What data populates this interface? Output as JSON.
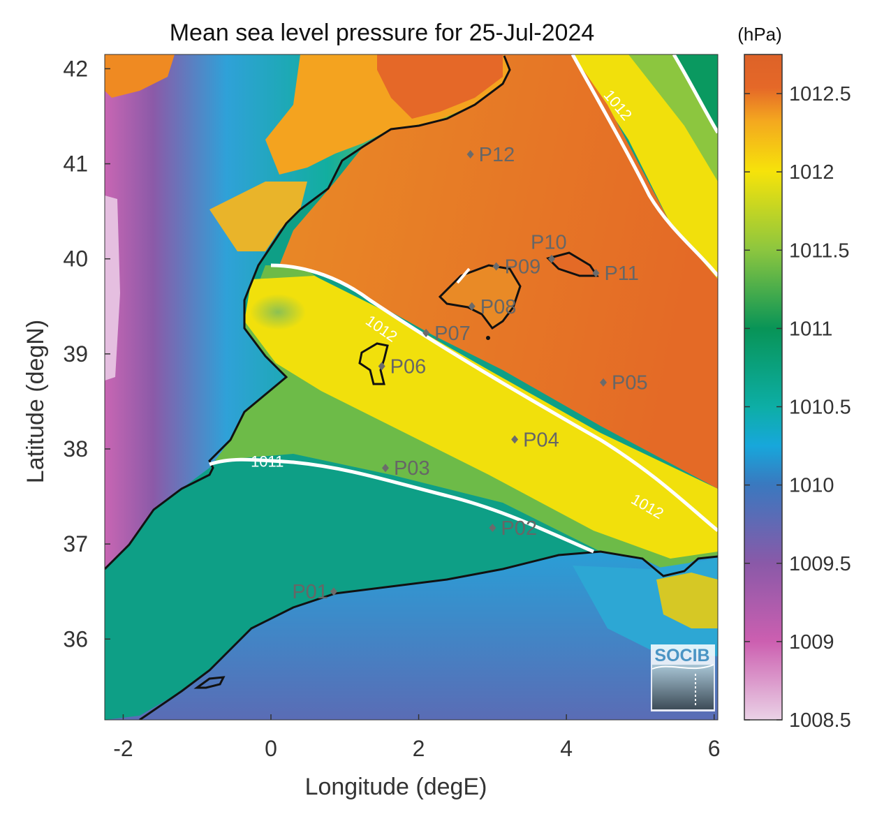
{
  "title": "Mean sea level pressure for 25-Jul-2024",
  "colorbar": {
    "unit_label": "(hPa)",
    "ticks": [
      "1008.5",
      "1009",
      "1009.5",
      "1010",
      "1010.5",
      "1011",
      "1011.5",
      "1012",
      "1012.5"
    ],
    "range": [
      1008.5,
      1012.75
    ],
    "colors": [
      "#ead2e6",
      "#cc5fb0",
      "#8a59a8",
      "#3a78bf",
      "#17a7db",
      "#0daea6",
      "#089457",
      "#8cc63f",
      "#f6e30a",
      "#f4a81f",
      "#e56828",
      "#dd6228"
    ]
  },
  "xaxis": {
    "label": "Longitude (degE)",
    "range": [
      -2.25,
      6.05
    ],
    "ticks": [
      {
        "value": -2,
        "label": "-2"
      },
      {
        "value": 0,
        "label": "0"
      },
      {
        "value": 2,
        "label": "2"
      },
      {
        "value": 4,
        "label": "4"
      },
      {
        "value": 6,
        "label": "6"
      }
    ]
  },
  "yaxis": {
    "label": "Latitude (degN)",
    "range": [
      35.15,
      42.15
    ],
    "ticks": [
      {
        "value": 36,
        "label": "36"
      },
      {
        "value": 37,
        "label": "37"
      },
      {
        "value": 38,
        "label": "38"
      },
      {
        "value": 39,
        "label": "39"
      },
      {
        "value": 40,
        "label": "40"
      },
      {
        "value": 41,
        "label": "41"
      },
      {
        "value": 42,
        "label": "42"
      }
    ]
  },
  "contours": [
    {
      "label": "1012",
      "lon": 4.7,
      "lat": 41.62
    },
    {
      "label": "1012",
      "lon": 1.5,
      "lat": 39.27
    },
    {
      "label": "1012",
      "lon": 5.1,
      "lat": 37.4
    },
    {
      "label": "1011",
      "lon": -0.05,
      "lat": 37.87
    }
  ],
  "stations": [
    {
      "name": "P01",
      "lon": 0.85,
      "lat": 36.5
    },
    {
      "name": "P02",
      "lon": 3.0,
      "lat": 37.17
    },
    {
      "name": "P03",
      "lon": 1.55,
      "lat": 37.8
    },
    {
      "name": "P04",
      "lon": 3.3,
      "lat": 38.1
    },
    {
      "name": "P05",
      "lon": 4.5,
      "lat": 38.7
    },
    {
      "name": "P06",
      "lon": 1.5,
      "lat": 38.87
    },
    {
      "name": "P07",
      "lon": 2.1,
      "lat": 39.22
    },
    {
      "name": "P08",
      "lon": 2.72,
      "lat": 39.5
    },
    {
      "name": "P09",
      "lon": 3.05,
      "lat": 39.92
    },
    {
      "name": "P10",
      "lon": 3.8,
      "lat": 40.0
    },
    {
      "name": "P11",
      "lon": 4.4,
      "lat": 39.85
    },
    {
      "name": "P12",
      "lon": 2.7,
      "lat": 41.1
    }
  ],
  "logo": {
    "text": "SOCIB"
  }
}
